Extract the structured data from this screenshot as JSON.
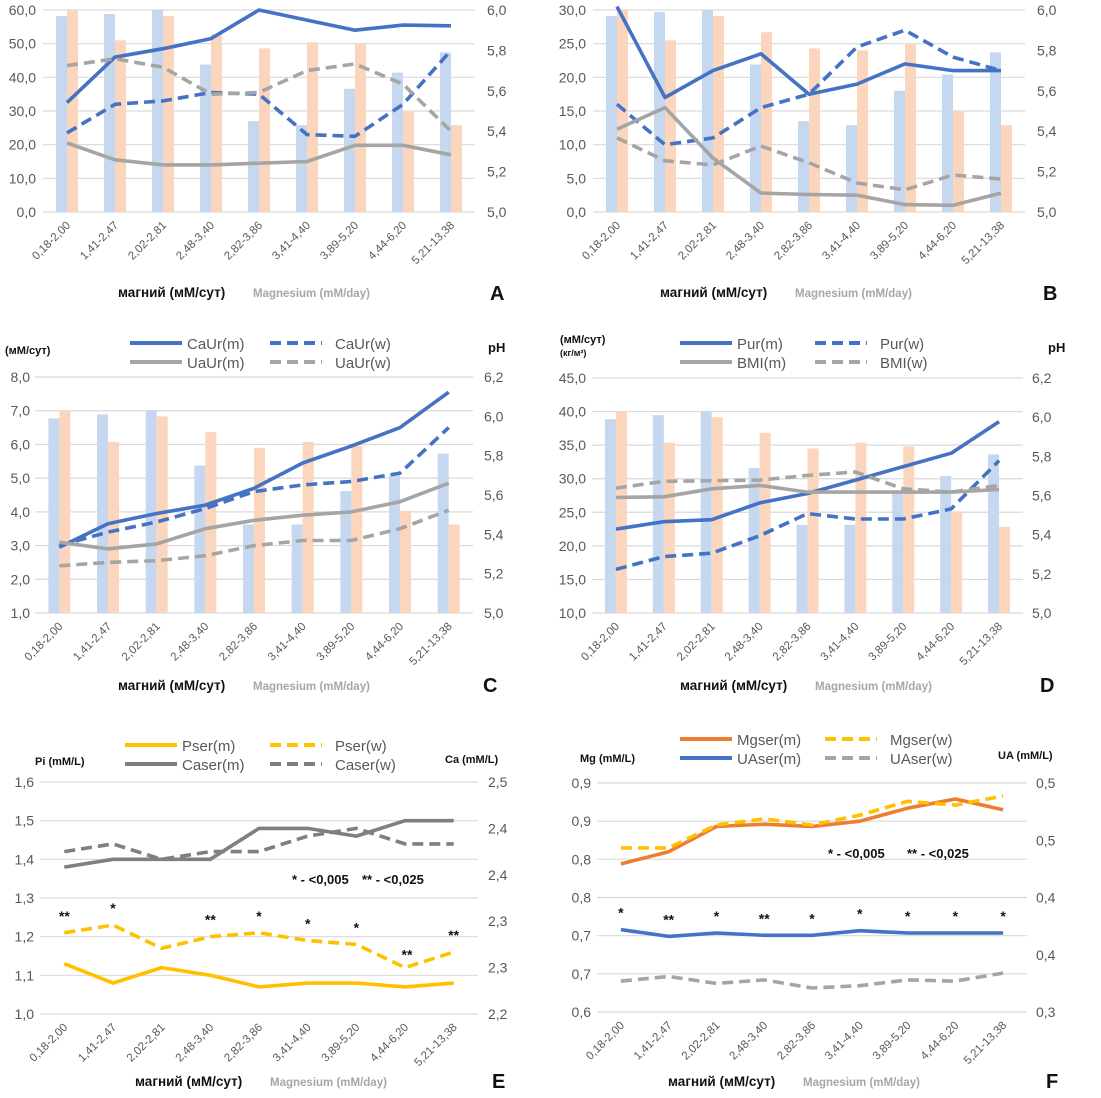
{
  "chart_data": [
    {
      "panel": "A",
      "type": "bar+line",
      "categories": [
        "0,18-2,00",
        "1,41-2,47",
        "2,02-2,81",
        "2,48-3,40",
        "2,82-3,86",
        "3,41-4,40",
        "3,89-5,20",
        "4,44-6,20",
        "5,21-13,38"
      ],
      "xlabel": "магний (мМ/сут)",
      "xlabel_en": "Magnesium (mM/day)",
      "ylim_left": [
        0,
        60
      ],
      "yticks_left": [
        "0,0",
        "10,0",
        "20,0",
        "30,0",
        "40,0",
        "50,0",
        "60,0"
      ],
      "ylim_right": [
        5.0,
        6.0
      ],
      "yticks_right": [
        "5,0",
        "5,2",
        "5,4",
        "5,6",
        "5,8",
        "6,0"
      ],
      "grid": true,
      "bars": [
        {
          "color": "#c6d8ef",
          "axis": "right",
          "values": [
            5.97,
            5.98,
            6.0,
            5.73,
            5.45,
            5.43,
            5.61,
            5.69,
            5.79
          ]
        },
        {
          "color": "#fbd6bc",
          "axis": "right",
          "values": [
            6.0,
            5.85,
            5.97,
            5.88,
            5.81,
            5.84,
            5.83,
            5.5,
            5.43
          ]
        }
      ],
      "series": [
        {
          "color": "#4472c4",
          "style": "solid",
          "axis": "left",
          "values": [
            32.5,
            46,
            48.5,
            51.5,
            60,
            57,
            54,
            55.5,
            55.3
          ]
        },
        {
          "color": "#4472c4",
          "style": "dashed",
          "axis": "left",
          "values": [
            23.5,
            32,
            33,
            35.5,
            35,
            23,
            22.5,
            32,
            48
          ]
        },
        {
          "color": "#a5a5a5",
          "style": "solid",
          "axis": "left",
          "values": [
            20.5,
            15.5,
            14,
            14,
            14.5,
            15,
            19.8,
            19.8,
            17
          ]
        },
        {
          "color": "#a5a5a5",
          "style": "dashed",
          "axis": "left",
          "values": [
            43.5,
            45.5,
            43,
            35,
            35.5,
            42,
            44,
            38,
            24
          ]
        }
      ]
    },
    {
      "panel": "B",
      "type": "bar+line",
      "categories": [
        "0,18-2,00",
        "1,41-2,47",
        "2,02-2,81",
        "2,48-3,40",
        "2,82-3,86",
        "3,41-4,40",
        "3,89-5,20",
        "4,44-6,20",
        "5,21-13,38"
      ],
      "xlabel": "магний (мМ/сут)",
      "xlabel_en": "Magnesium (mM/day)",
      "ylim_left": [
        0,
        30
      ],
      "yticks_left": [
        "0,0",
        "5,0",
        "10,0",
        "15,0",
        "20,0",
        "25,0",
        "30,0"
      ],
      "ylim_right": [
        5.0,
        6.0
      ],
      "yticks_right": [
        "5,0",
        "5,2",
        "5,4",
        "5,6",
        "5,8",
        "6,0"
      ],
      "grid": true,
      "bars": [
        {
          "color": "#c6d8ef",
          "axis": "right",
          "values": [
            5.97,
            5.99,
            6.0,
            5.73,
            5.45,
            5.43,
            5.6,
            5.68,
            5.79
          ]
        },
        {
          "color": "#fbd6bc",
          "axis": "right",
          "values": [
            6.0,
            5.85,
            5.97,
            5.89,
            5.81,
            5.8,
            5.83,
            5.5,
            5.43
          ]
        }
      ],
      "series": [
        {
          "color": "#4472c4",
          "style": "solid",
          "axis": "left",
          "values": [
            30.5,
            17,
            21,
            23.5,
            17.5,
            19,
            22,
            21,
            21
          ]
        },
        {
          "color": "#4472c4",
          "style": "dashed",
          "axis": "left",
          "values": [
            16,
            10,
            11,
            15.5,
            17.5,
            24.5,
            27,
            23,
            21
          ]
        },
        {
          "color": "#a5a5a5",
          "style": "solid",
          "axis": "left",
          "values": [
            12.3,
            15.5,
            8,
            2.8,
            2.6,
            2.5,
            1.1,
            1.0,
            2.8
          ]
        },
        {
          "color": "#a5a5a5",
          "style": "dashed",
          "axis": "left",
          "values": [
            11,
            7.6,
            7,
            9.8,
            7.3,
            4.3,
            3.3,
            5.5,
            4.9
          ]
        }
      ]
    },
    {
      "panel": "C",
      "type": "bar+line",
      "categories": [
        "0,18-2,00",
        "1,41-2,47",
        "2,02-2,81",
        "2,48-3,40",
        "2,82-3,86",
        "3,41-4,40",
        "3,89-5,20",
        "4,44-6,20",
        "5,21-13,38"
      ],
      "xlabel": "магний (мМ/сут)",
      "xlabel_en": "Magnesium (mM/day)",
      "ylabel_left": "(мМ/сут)",
      "ylabel_right": "pH",
      "ylim_left": [
        1,
        8
      ],
      "yticks_left": [
        "1,0",
        "2,0",
        "3,0",
        "4,0",
        "5,0",
        "6,0",
        "7,0",
        "8,0"
      ],
      "ylim_right": [
        5.0,
        6.2
      ],
      "yticks_right": [
        "5,0",
        "5,2",
        "5,4",
        "5,6",
        "5,8",
        "6,0",
        "6,2"
      ],
      "grid": true,
      "legend": "top",
      "bars": [
        {
          "color": "#c6d8ef",
          "axis": "right",
          "values": [
            5.99,
            6.01,
            6.03,
            5.75,
            5.45,
            5.45,
            5.62,
            5.7,
            5.81
          ]
        },
        {
          "color": "#fbd6bc",
          "axis": "right",
          "values": [
            6.03,
            5.87,
            6.0,
            5.92,
            5.84,
            5.87,
            5.85,
            5.52,
            5.45
          ]
        }
      ],
      "series": [
        {
          "name": "CaUr(m)",
          "color": "#4472c4",
          "style": "solid",
          "axis": "left",
          "values": [
            2.95,
            3.65,
            3.95,
            4.2,
            4.7,
            5.45,
            5.95,
            6.5,
            7.55
          ]
        },
        {
          "name": "CaUr(w)",
          "color": "#4472c4",
          "style": "dashed",
          "axis": "left",
          "values": [
            3.0,
            3.4,
            3.7,
            4.1,
            4.6,
            4.8,
            4.9,
            5.15,
            6.5
          ]
        },
        {
          "name": "UaUr(m)",
          "color": "#a5a5a5",
          "style": "solid",
          "axis": "left",
          "values": [
            3.1,
            2.9,
            3.05,
            3.5,
            3.75,
            3.9,
            4.0,
            4.3,
            4.85
          ]
        },
        {
          "name": "UaUr(w)",
          "color": "#a5a5a5",
          "style": "dashed",
          "axis": "left",
          "values": [
            2.4,
            2.5,
            2.55,
            2.7,
            3.0,
            3.15,
            3.15,
            3.5,
            4.05
          ]
        }
      ]
    },
    {
      "panel": "D",
      "type": "bar+line",
      "categories": [
        "0,18-2,00",
        "1,41-2,47",
        "2,02-2,81",
        "2,48-3,40",
        "2,82-3,86",
        "3,41-4,40",
        "3,89-5,20",
        "4,44-6,20",
        "5,21-13,38"
      ],
      "xlabel": "магний (мМ/сут)",
      "xlabel_en": "Magnesium (mM/day)",
      "ylabel_left": "(мМ/сут)",
      "ylabel_left2": "(кг/м²)",
      "ylabel_right": "pH",
      "ylim_left": [
        10,
        45
      ],
      "yticks_left": [
        "10,0",
        "15,0",
        "20,0",
        "25,0",
        "30,0",
        "35,0",
        "40,0",
        "45,0"
      ],
      "ylim_right": [
        5.0,
        6.2
      ],
      "yticks_right": [
        "5,0",
        "5,2",
        "5,4",
        "5,6",
        "5,8",
        "6,0",
        "6,2"
      ],
      "grid": true,
      "legend": "top",
      "bars": [
        {
          "color": "#c6d8ef",
          "axis": "right",
          "values": [
            5.99,
            6.01,
            6.03,
            5.74,
            5.45,
            5.45,
            5.62,
            5.7,
            5.81
          ]
        },
        {
          "color": "#fbd6bc",
          "axis": "right",
          "values": [
            6.03,
            5.87,
            6.0,
            5.92,
            5.84,
            5.87,
            5.85,
            5.52,
            5.44
          ]
        }
      ],
      "series": [
        {
          "name": "Pur(m)",
          "color": "#4472c4",
          "style": "solid",
          "axis": "left",
          "values": [
            22.5,
            23.6,
            23.9,
            26.4,
            27.8,
            29.8,
            31.8,
            33.8,
            38.5
          ]
        },
        {
          "name": "Pur(w)",
          "color": "#4472c4",
          "style": "dashed",
          "axis": "left",
          "values": [
            16.5,
            18.4,
            18.9,
            21.5,
            24.8,
            24,
            24,
            25.5,
            32.7
          ]
        },
        {
          "name": "BMI(m)",
          "color": "#a5a5a5",
          "style": "solid",
          "axis": "left",
          "values": [
            27.2,
            27.3,
            28.5,
            29,
            28,
            28,
            28,
            28,
            28.4
          ]
        },
        {
          "name": "BMI(w)",
          "color": "#a5a5a5",
          "style": "dashed",
          "axis": "left",
          "values": [
            28.6,
            29.6,
            29.7,
            29.8,
            30.5,
            31,
            28.5,
            28,
            29
          ]
        }
      ]
    },
    {
      "panel": "E",
      "type": "line",
      "categories": [
        "0,18-2,00",
        "1,41-2,47",
        "2,02-2,81",
        "2,48-3,40",
        "2,82-3,86",
        "3,41-4,40",
        "3,89-5,20",
        "4,44-6,20",
        "5,21-13,38"
      ],
      "xlabel": "магний (мМ/сут)",
      "xlabel_en": "Magnesium (mM/day)",
      "ylabel_left": "Pi (mM/L)",
      "ylabel_right": "Ca (mM/L)",
      "ylim_left": [
        1.0,
        1.6
      ],
      "yticks_left": [
        "1,0",
        "1,1",
        "1,2",
        "1,3",
        "1,4",
        "1,5",
        "1,6"
      ],
      "ylim_right": [
        2.2,
        2.5
      ],
      "yticks_right": [
        "2,2",
        "2,3",
        "2,3",
        "2,4",
        "2,4",
        "2,5"
      ],
      "grid": true,
      "legend": "top",
      "significance": [
        "* - <0,005",
        "** - <0,025"
      ],
      "series": [
        {
          "name": "Pser(m)",
          "color": "#ffc000",
          "style": "solid",
          "axis": "left",
          "values": [
            1.13,
            1.08,
            1.12,
            1.1,
            1.07,
            1.08,
            1.08,
            1.07,
            1.08
          ]
        },
        {
          "name": "Pser(w)",
          "color": "#ffc000",
          "style": "dashed",
          "axis": "left",
          "values": [
            1.21,
            1.23,
            1.17,
            1.2,
            1.21,
            1.19,
            1.18,
            1.12,
            1.16
          ],
          "marks": [
            "**",
            "*",
            "",
            "**",
            "*",
            "*",
            "*",
            "**",
            "**"
          ]
        },
        {
          "name": "Caser(m)",
          "color": "#7f7f7f",
          "style": "solid",
          "axis": "right",
          "values": [
            2.39,
            2.4,
            2.4,
            2.4,
            2.44,
            2.44,
            2.43,
            2.45,
            2.45
          ]
        },
        {
          "name": "Caser(w)",
          "color": "#7f7f7f",
          "style": "dashed",
          "axis": "right",
          "values": [
            2.41,
            2.42,
            2.4,
            2.41,
            2.41,
            2.43,
            2.44,
            2.42,
            2.42
          ]
        }
      ]
    },
    {
      "panel": "F",
      "type": "line",
      "categories": [
        "0,18-2,00",
        "1,41-2,47",
        "2,02-2,81",
        "2,48-3,40",
        "2,82-3,86",
        "3,41-4,40",
        "3,89-5,20",
        "4,44-6,20",
        "5,21-13,38"
      ],
      "xlabel": "магний (мМ/сут)",
      "xlabel_en": "Magnesium (mM/day)",
      "ylabel_left": "Mg (mM/L)",
      "ylabel_right": "UA (mM/L)",
      "ylim_left": [
        0.6,
        0.9
      ],
      "yticks_left": [
        "0,6",
        "0,7",
        "0,7",
        "0,8",
        "0,8",
        "0,9",
        "0,9"
      ],
      "ylim_right": [
        0.3,
        0.5
      ],
      "yticks_right": [
        "0,3",
        "0,4",
        "0,4",
        "0,5",
        "0,5"
      ],
      "grid": true,
      "legend": "top",
      "significance": [
        "* - <0,005",
        "** - <0,025"
      ],
      "series": [
        {
          "name": "Mgser(m)",
          "color": "#ed7d31",
          "style": "solid",
          "axis": "left",
          "values": [
            0.794,
            0.81,
            0.843,
            0.846,
            0.843,
            0.85,
            0.867,
            0.879,
            0.865
          ]
        },
        {
          "name": "Mgser(w)",
          "color": "#ffc000",
          "style": "dashed",
          "axis": "left",
          "values": [
            0.815,
            0.815,
            0.845,
            0.853,
            0.845,
            0.858,
            0.876,
            0.871,
            0.883
          ]
        },
        {
          "name": "UAser(m)",
          "color": "#4472c4",
          "style": "solid",
          "axis": "right",
          "values": [
            0.372,
            0.366,
            0.369,
            0.367,
            0.367,
            0.371,
            0.369,
            0.369,
            0.369
          ],
          "marks": [
            "*",
            "**",
            "*",
            "**",
            "*",
            "*",
            "*",
            "*",
            "*"
          ]
        },
        {
          "name": "UAser(w)",
          "color": "#a5a5a5",
          "style": "dashed",
          "axis": "right",
          "values": [
            0.327,
            0.331,
            0.325,
            0.328,
            0.321,
            0.323,
            0.328,
            0.327,
            0.334
          ]
        }
      ]
    }
  ]
}
